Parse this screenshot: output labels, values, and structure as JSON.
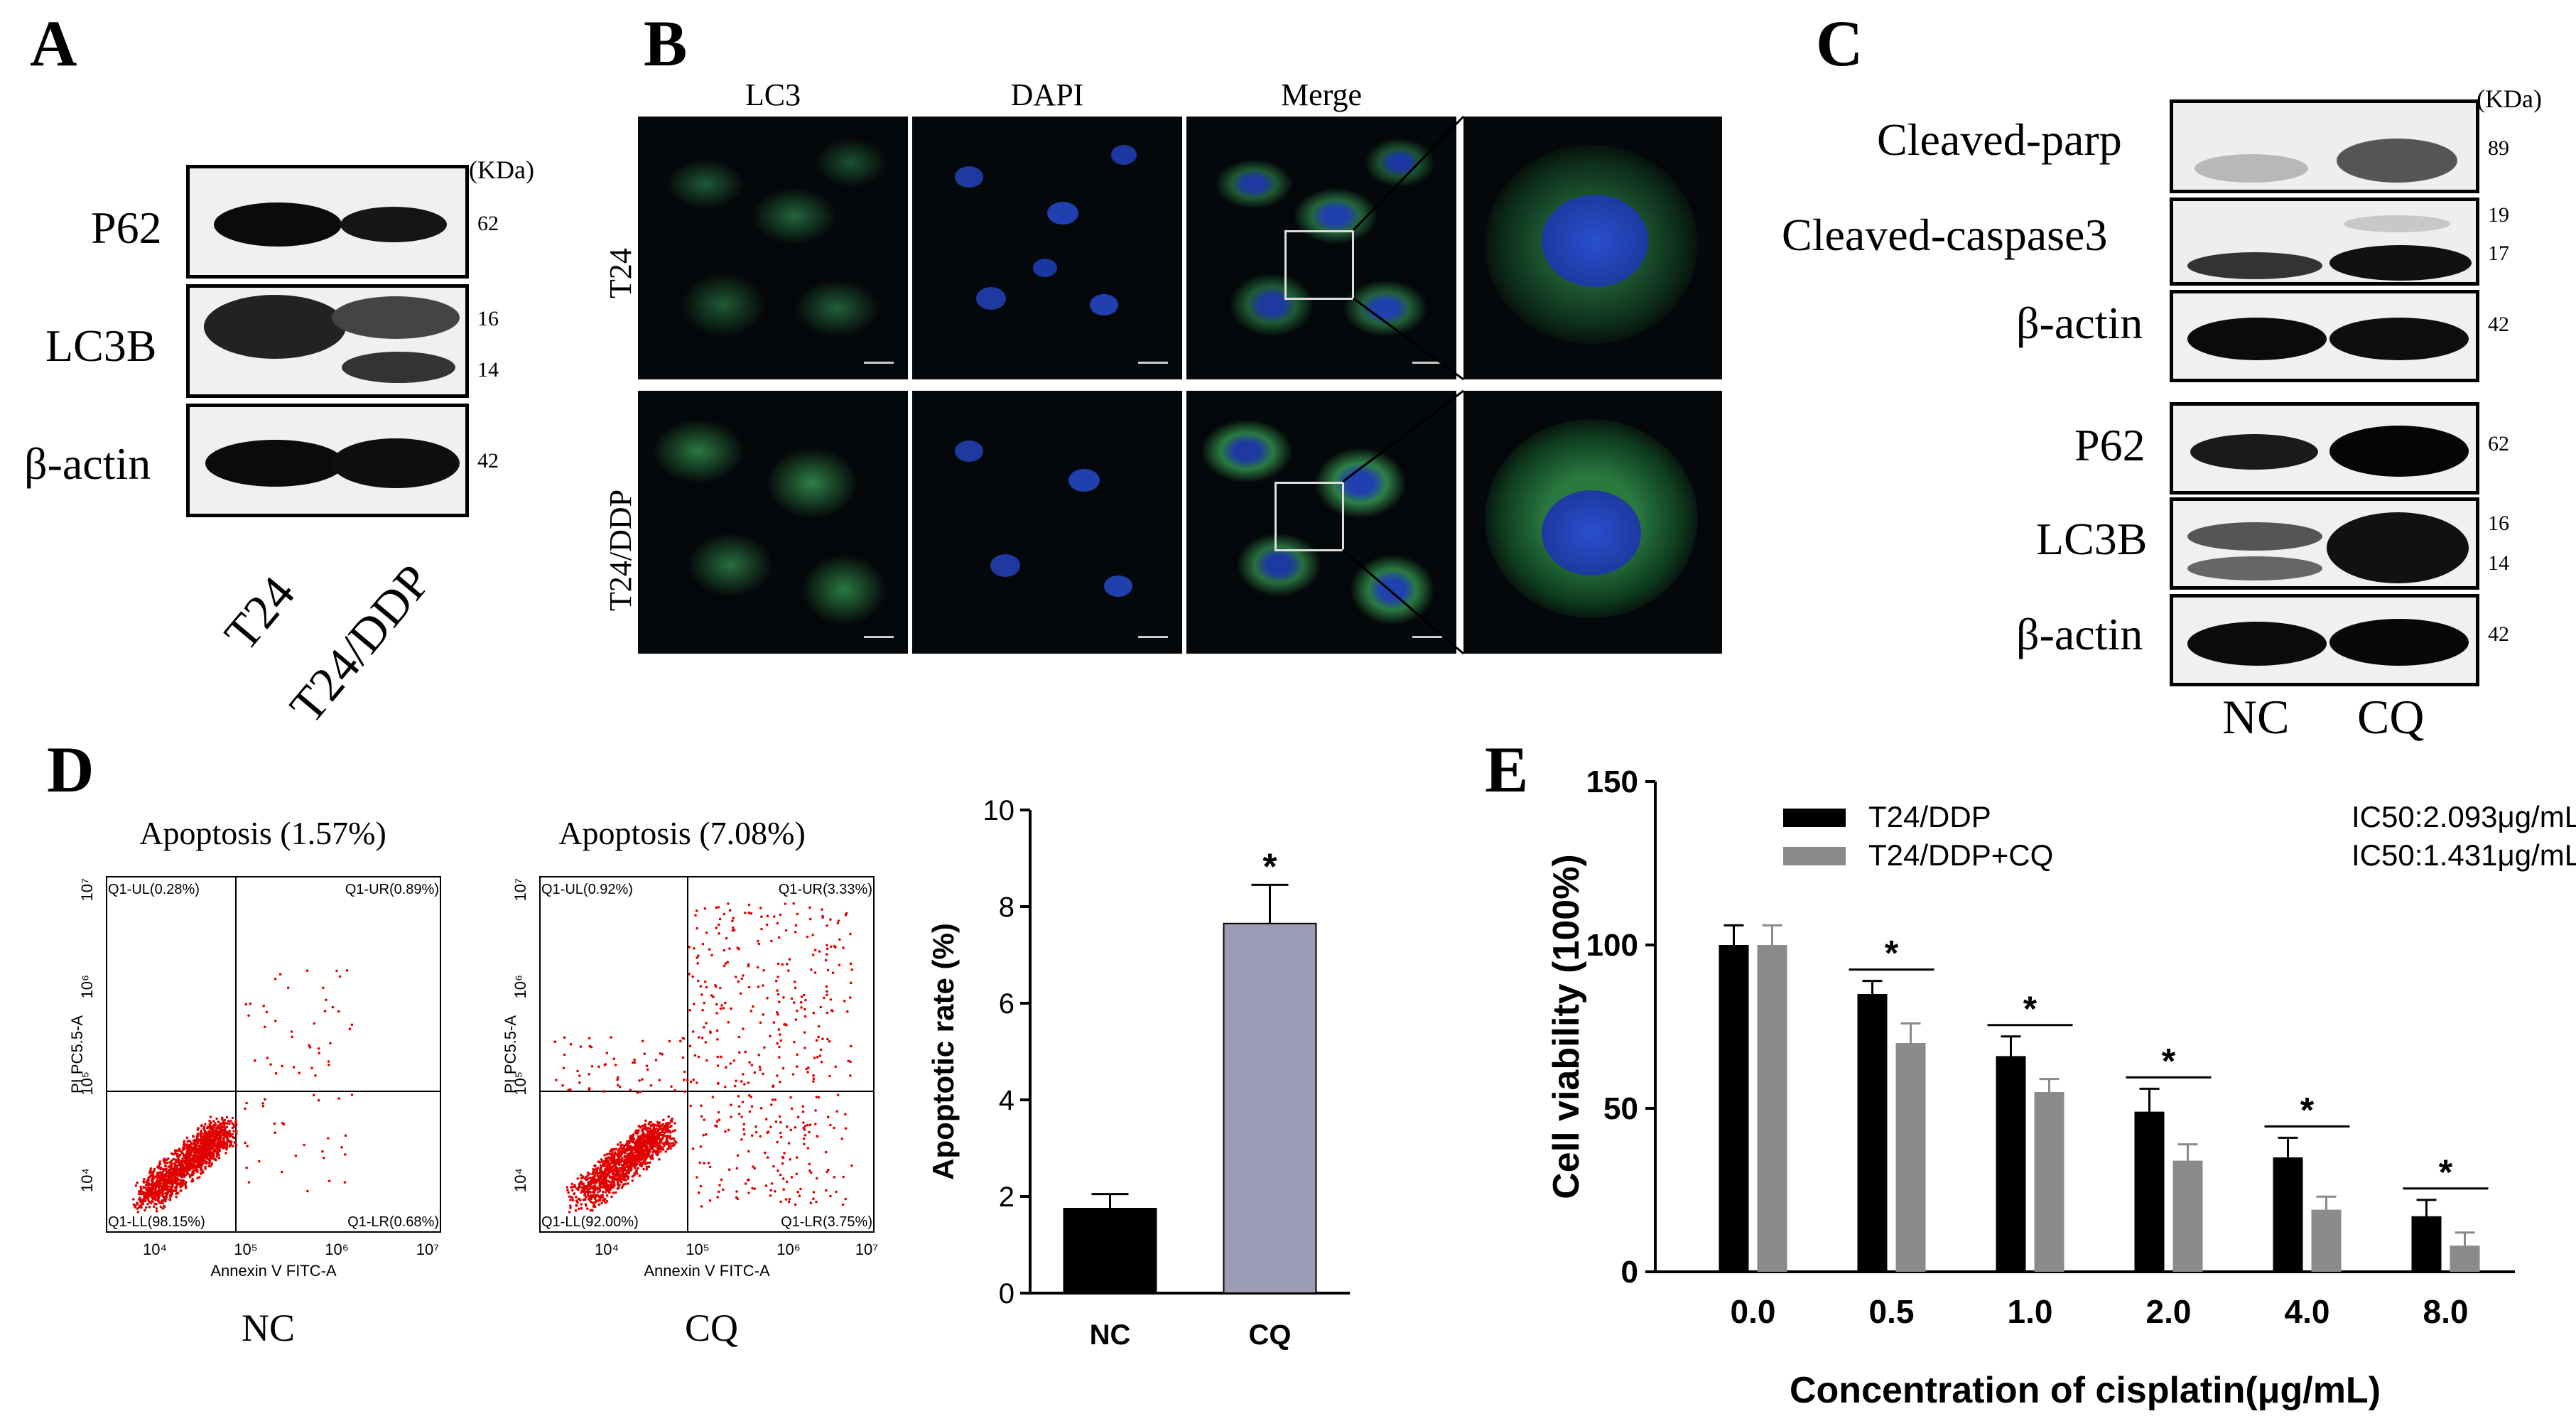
{
  "panels": {
    "A": {
      "letter": "A",
      "kda_header": "(KDa)",
      "rows": [
        {
          "label": "P62",
          "kda": [
            "62"
          ]
        },
        {
          "label": "LC3B",
          "kda": [
            "16",
            "14"
          ]
        },
        {
          "label": "β-actin",
          "kda": [
            "42"
          ]
        }
      ],
      "lanes": [
        "T24",
        "T24/DDP"
      ]
    },
    "B": {
      "letter": "B",
      "columns": [
        "LC3",
        "DAPI",
        "Merge"
      ],
      "rows": [
        "T24",
        "T24/DDP"
      ]
    },
    "C": {
      "letter": "C",
      "kda_header": "(KDa)",
      "rows": [
        {
          "label": "Cleaved-parp",
          "kda": [
            "89"
          ]
        },
        {
          "label": "Cleaved-caspase3",
          "kda": [
            "19",
            "17"
          ]
        },
        {
          "label": "β-actin",
          "kda": [
            "42"
          ]
        },
        {
          "label": "P62",
          "kda": [
            "62"
          ]
        },
        {
          "label": "LC3B",
          "kda": [
            "16",
            "14"
          ]
        },
        {
          "label": "β-actin",
          "kda": [
            "42"
          ]
        }
      ],
      "lanes": [
        "NC",
        "CQ"
      ]
    },
    "D": {
      "letter": "D",
      "flow": [
        {
          "title": "Apoptosis (1.57%)",
          "caption": "NC",
          "q_ul": "Q1-UL(0.28%)",
          "q_ur": "Q1-UR(0.89%)",
          "q_ll": "Q1-LL(98.15%)",
          "q_lr": "Q1-LR(0.68%)",
          "xlabel": "Annexin V FITC-A",
          "ylabel": "PI PC5.5-A"
        },
        {
          "title": "Apoptosis (7.08%)",
          "caption": "CQ",
          "q_ul": "Q1-UL(0.92%)",
          "q_ur": "Q1-UR(3.33%)",
          "q_ll": "Q1-LL(92.00%)",
          "q_lr": "Q1-LR(3.75%)",
          "xlabel": "Annexin V FITC-A",
          "ylabel": "PI PC5.5-A"
        }
      ]
    },
    "E": {
      "letter": "E"
    }
  },
  "chart_data": [
    {
      "type": "bar",
      "categories": [
        "NC",
        "CQ"
      ],
      "values": [
        1.75,
        7.65
      ],
      "errors": [
        0.3,
        0.8
      ],
      "ylabel": "Apoptotic rate (%)",
      "ylim": [
        0,
        10
      ],
      "yticks": [
        "0",
        "2",
        "4",
        "6",
        "8",
        "10"
      ],
      "significance": [
        "",
        "*"
      ],
      "colors": [
        "#000000",
        "#9c9cb4"
      ]
    },
    {
      "type": "bar",
      "categories": [
        "0.0",
        "0.5",
        "1.0",
        "2.0",
        "4.0",
        "8.0"
      ],
      "xlabel": "Concentration of cisplatin(μg/mL)",
      "ylabel": "Cell viability (100%)",
      "ylim": [
        0,
        150
      ],
      "yticks": [
        "0",
        "50",
        "100",
        "150"
      ],
      "series": [
        {
          "name": "T24/DDP",
          "values": [
            100,
            85,
            66,
            49,
            35,
            17
          ],
          "errors": [
            6,
            4,
            6,
            7,
            6,
            5
          ],
          "color": "#000000"
        },
        {
          "name": "T24/DDP+CQ",
          "values": [
            100,
            70,
            55,
            34,
            19,
            8
          ],
          "errors": [
            6,
            6,
            4,
            5,
            4,
            4
          ],
          "color": "#8a8a8a"
        }
      ],
      "significance": [
        "",
        "*",
        "*",
        "*",
        "*",
        "*"
      ],
      "ic50": [
        "IC50:2.093μg/mL",
        "IC50:1.431μg/mL"
      ]
    }
  ]
}
